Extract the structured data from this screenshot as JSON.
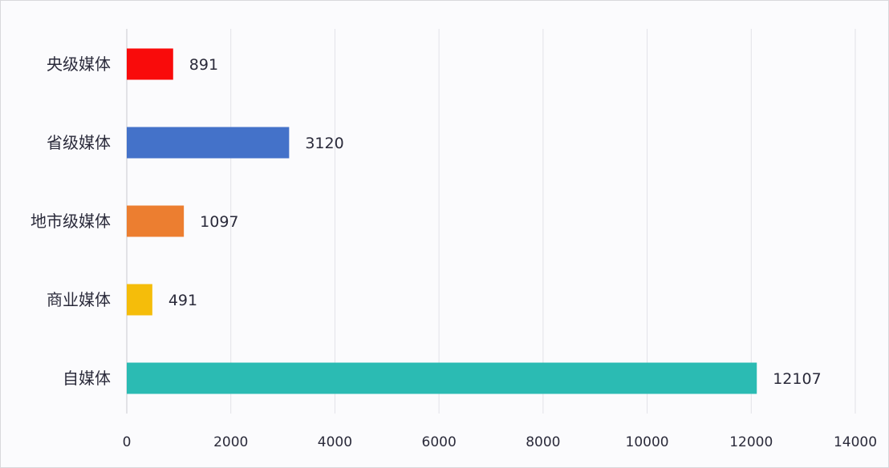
{
  "chart_data": {
    "type": "bar",
    "orientation": "horizontal",
    "title": "",
    "xlabel": "",
    "ylabel": "",
    "categories": [
      "央级媒体",
      "省级媒体",
      "地市级媒体",
      "商业媒体",
      "自媒体"
    ],
    "values": [
      891,
      3120,
      1097,
      491,
      12107
    ],
    "colors": [
      "#f90b0b",
      "#4472c9",
      "#ec7e30",
      "#f5bd0a",
      "#2bbbb3"
    ],
    "xlim": [
      0,
      14000
    ],
    "xticks": [
      "0",
      "2000",
      "4000",
      "6000",
      "8000",
      "10000",
      "12000",
      "14000"
    ],
    "grid": "vertical",
    "data_labels": [
      "891",
      "3120",
      "1097",
      "491",
      "12107"
    ]
  }
}
